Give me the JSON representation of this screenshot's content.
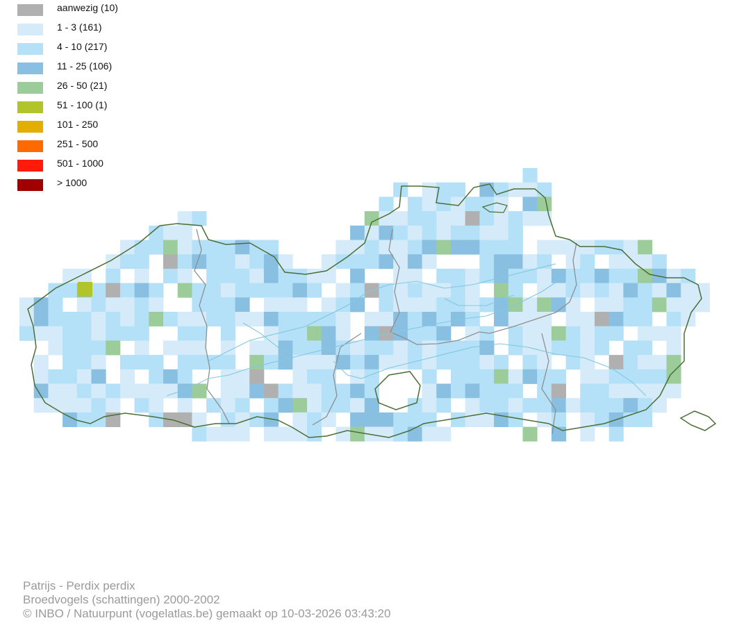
{
  "legend": [
    {
      "label": "aanwezig (10)",
      "color": "#b0b0b0"
    },
    {
      "label": "1 - 3 (161)",
      "color": "#d6ebfa"
    },
    {
      "label": "4 - 10 (217)",
      "color": "#b4e0f8"
    },
    {
      "label": "11 - 25 (106)",
      "color": "#89c0e2"
    },
    {
      "label": "26 - 50 (21)",
      "color": "#9dcc9b"
    },
    {
      "label": "51 - 100 (1)",
      "color": "#b1c42a"
    },
    {
      "label": "101 - 250",
      "color": "#e2af00"
    },
    {
      "label": "251 - 500",
      "color": "#ff6a00"
    },
    {
      "label": "501 - 1000",
      "color": "#ff1a0a"
    },
    {
      "label": "> 1000",
      "color": "#a00000"
    }
  ],
  "caption": {
    "line1": "Patrijs - Perdix perdix",
    "line2": "Broedvogels (schattingen) 2000-2002",
    "line3": "© INBO / Natuurpunt (vogelatlas.be) gemaakt op 10-03-2026 03:43:20"
  },
  "colors": {
    "border": "#4a6e35",
    "province": "#8e8e8e",
    "river": "#7fc9dd"
  }
}
